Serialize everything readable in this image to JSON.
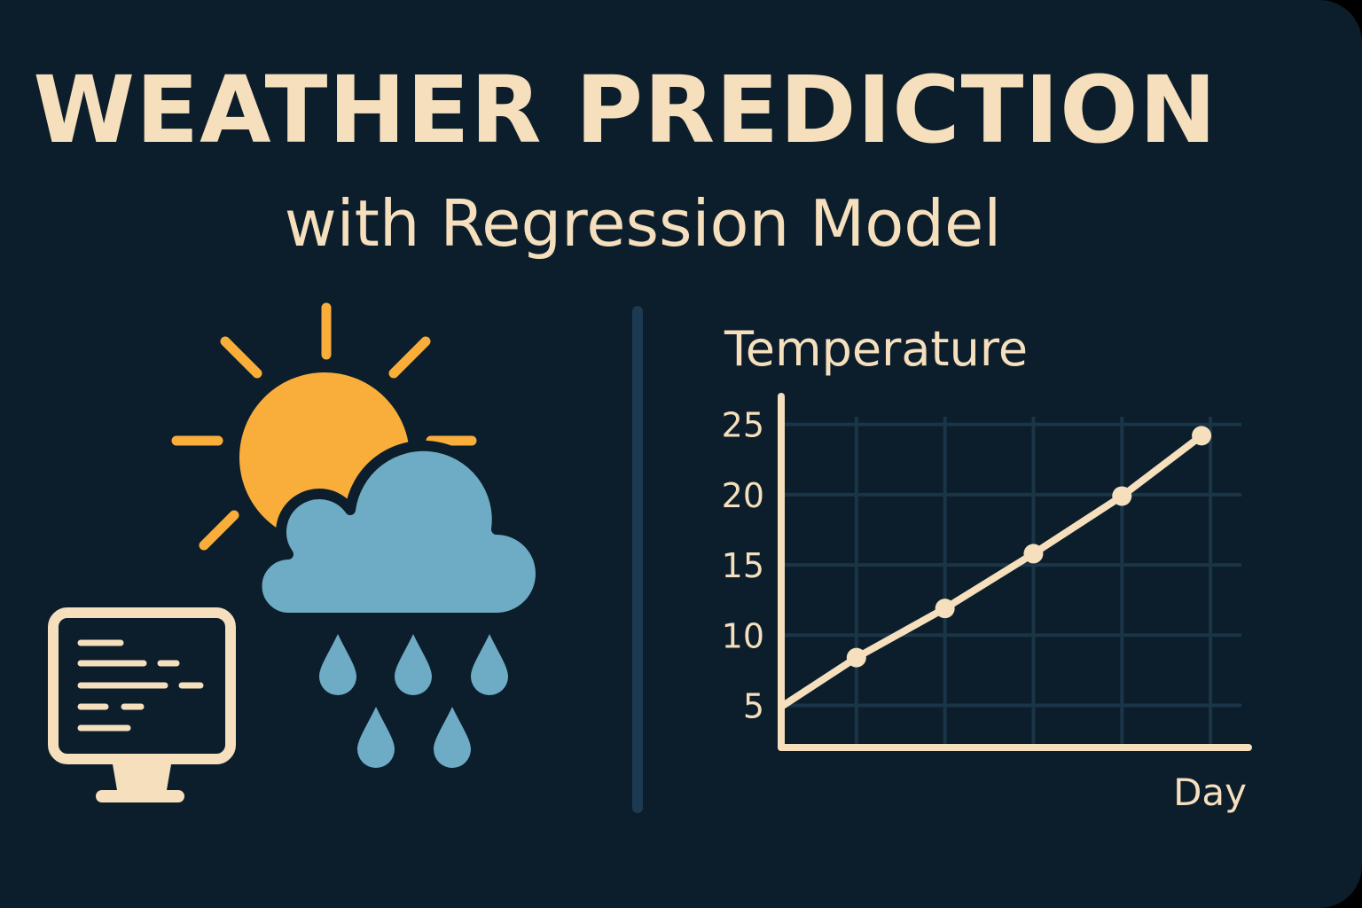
{
  "header": {
    "title": "WEATHER PREDICTION",
    "subtitle": "with Regression Model"
  },
  "illustration": {
    "icons": [
      "sun-icon",
      "cloud-icon",
      "raindrop-icon",
      "computer-monitor-icon"
    ]
  },
  "colors": {
    "background": "#0c1e2b",
    "text": "#f5dfbd",
    "sun": "#f9ae3b",
    "cloud": "#6eabc4",
    "grid": "#1a3547",
    "divider": "#1c3a52"
  },
  "chart_data": {
    "type": "line",
    "title": "Temperature",
    "xlabel": "Day",
    "ylabel": "",
    "y_ticks": [
      5,
      10,
      15,
      20,
      25
    ],
    "ylim": [
      2,
      27
    ],
    "xlim": [
      0,
      5.2
    ],
    "grid": true,
    "series": [
      {
        "x": [
          0,
          0.85,
          1.85,
          2.85,
          3.85,
          4.75
        ],
        "values": [
          4.9,
          8.4,
          11.9,
          15.8,
          19.9,
          24.2
        ]
      }
    ]
  }
}
